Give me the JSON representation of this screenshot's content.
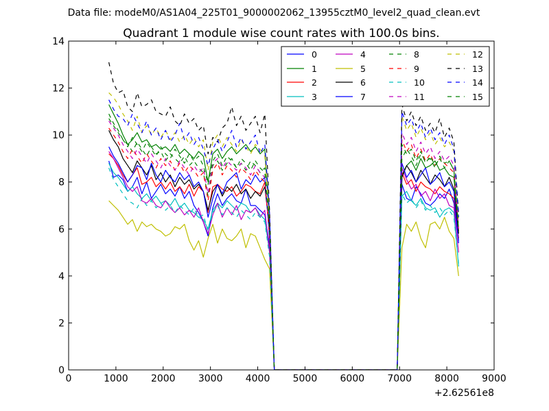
{
  "figure": {
    "suptitle": "Data file: modeM0/AS1A04_225T01_9000002062_13955cztM0_level2_quad_clean.evt"
  },
  "chart_data": {
    "type": "line",
    "title": "Quadrant 1 module wise count rates with 100.0s bins.",
    "xlabel": "",
    "ylabel": "",
    "x_offset_text": "+2.62561e8",
    "xlim": [
      0,
      9000
    ],
    "ylim": [
      0,
      14
    ],
    "xticks": [
      0,
      1000,
      2000,
      3000,
      4000,
      5000,
      6000,
      7000,
      8000,
      9000
    ],
    "yticks": [
      0,
      2,
      4,
      6,
      8,
      10,
      12,
      14
    ],
    "legend_location": "top-right",
    "legend_columns": 4,
    "segments": [
      {
        "x_start": 850,
        "x_end": 4350,
        "step": 100
      },
      {
        "x_start": 6950,
        "x_end": 8250,
        "step": 100
      }
    ],
    "gap_start": 4350,
    "gap_end": 6950,
    "series": [
      {
        "name": "0",
        "color": "#0000ff",
        "dash": "solid",
        "seg1": [
          8.9,
          8.2,
          8.3,
          8.1,
          7.6,
          7.8,
          8.2,
          7.5,
          8.0,
          7.3,
          7.6,
          7.9,
          7.5,
          7.7,
          7.4,
          7.8,
          7.3,
          7.6,
          7.0,
          6.7,
          6.3,
          5.7,
          6.9,
          7.5,
          7.0,
          7.3,
          7.5,
          7.2,
          7.1,
          7.7,
          7.0,
          7.0,
          6.8,
          6.6,
          5.3,
          0.0
        ],
        "seg2": [
          0.0,
          7.9,
          7.3,
          7.2,
          7.8,
          7.5,
          7.1,
          7.0,
          7.2,
          7.5,
          7.3,
          7.7,
          7.1,
          5.5
        ]
      },
      {
        "name": "1",
        "color": "#008000",
        "dash": "solid",
        "seg1": [
          11.3,
          10.9,
          10.5,
          10.0,
          9.6,
          9.8,
          10.1,
          9.7,
          9.8,
          9.5,
          9.6,
          9.4,
          9.5,
          9.3,
          9.6,
          9.2,
          9.4,
          9.2,
          9.0,
          9.3,
          9.1,
          8.0,
          9.2,
          9.4,
          9.0,
          9.3,
          9.5,
          9.2,
          9.4,
          9.6,
          9.3,
          9.5,
          9.2,
          9.4,
          6.2,
          0.0
        ],
        "seg2": [
          0.0,
          8.3,
          8.7,
          8.9,
          8.5,
          9.0,
          8.6,
          8.7,
          8.9,
          8.5,
          8.6,
          8.3,
          8.2,
          5.9
        ]
      },
      {
        "name": "2",
        "color": "#ff0000",
        "dash": "solid",
        "seg1": [
          9.2,
          9.0,
          8.7,
          8.3,
          8.0,
          8.3,
          8.6,
          7.9,
          8.0,
          8.2,
          7.8,
          8.0,
          7.7,
          8.0,
          7.6,
          7.8,
          7.5,
          7.9,
          7.4,
          7.8,
          7.6,
          6.7,
          7.8,
          7.9,
          7.7,
          7.6,
          7.8,
          7.4,
          7.6,
          7.9,
          7.8,
          7.6,
          7.5,
          8.0,
          5.8,
          0.0
        ],
        "seg2": [
          0.0,
          8.4,
          7.9,
          8.1,
          7.6,
          8.0,
          7.8,
          7.7,
          7.5,
          7.8,
          7.6,
          7.5,
          7.3,
          5.6
        ]
      },
      {
        "name": "3",
        "color": "#00bfbf",
        "dash": "solid",
        "seg1": [
          8.8,
          8.4,
          8.2,
          7.9,
          7.6,
          7.8,
          7.5,
          7.3,
          7.5,
          7.2,
          7.4,
          7.1,
          7.2,
          7.0,
          7.3,
          6.9,
          7.1,
          6.8,
          6.7,
          6.5,
          6.4,
          6.0,
          6.8,
          7.1,
          6.9,
          7.2,
          7.0,
          6.8,
          7.1,
          7.0,
          6.7,
          6.9,
          6.6,
          6.4,
          5.0,
          0.0
        ],
        "seg2": [
          0.0,
          7.4,
          7.6,
          7.2,
          7.0,
          7.3,
          6.9,
          6.8,
          6.9,
          6.5,
          6.8,
          6.9,
          6.7,
          4.4
        ]
      },
      {
        "name": "4",
        "color": "#bf00bf",
        "dash": "solid",
        "seg1": [
          9.3,
          9.0,
          8.6,
          8.2,
          7.8,
          7.6,
          7.8,
          7.2,
          7.1,
          7.3,
          7.0,
          6.9,
          7.2,
          6.9,
          6.7,
          6.9,
          6.6,
          6.8,
          6.5,
          6.9,
          6.3,
          5.8,
          6.6,
          7.1,
          6.5,
          6.9,
          6.6,
          7.0,
          6.4,
          6.8,
          6.7,
          6.9,
          6.5,
          6.8,
          5.0,
          0.0
        ],
        "seg2": [
          0.0,
          8.6,
          8.1,
          7.7,
          7.9,
          7.4,
          7.6,
          7.2,
          7.7,
          7.3,
          7.5,
          7.0,
          6.9,
          5.0
        ]
      },
      {
        "name": "5",
        "color": "#bfbf00",
        "dash": "solid",
        "seg1": [
          7.2,
          7.0,
          6.8,
          6.5,
          6.2,
          6.4,
          5.9,
          6.3,
          6.1,
          6.2,
          6.0,
          5.9,
          5.7,
          5.8,
          6.1,
          6.0,
          6.2,
          5.5,
          5.1,
          5.5,
          4.8,
          5.6,
          6.2,
          5.4,
          6.0,
          5.6,
          5.5,
          5.7,
          6.0,
          5.2,
          5.8,
          5.7,
          5.2,
          4.7,
          4.3,
          0.0
        ],
        "seg2": [
          0.0,
          5.2,
          6.2,
          5.9,
          6.3,
          5.6,
          5.2,
          6.2,
          6.3,
          6.0,
          6.5,
          5.9,
          5.6,
          4.0
        ]
      },
      {
        "name": "6",
        "color": "#000000",
        "dash": "solid",
        "seg1": [
          10.2,
          9.8,
          9.5,
          9.0,
          8.7,
          8.4,
          8.9,
          8.6,
          8.3,
          8.7,
          8.1,
          8.4,
          8.0,
          8.3,
          7.8,
          8.2,
          7.9,
          8.1,
          7.7,
          7.9,
          7.6,
          6.8,
          7.6,
          7.9,
          7.4,
          7.8,
          7.6,
          7.9,
          7.5,
          7.7,
          7.3,
          7.6,
          7.4,
          7.8,
          6.0,
          0.0
        ],
        "seg2": [
          0.0,
          8.2,
          8.7,
          8.4,
          8.0,
          8.5,
          8.2,
          7.9,
          8.3,
          8.1,
          7.8,
          8.2,
          7.7,
          5.8
        ]
      },
      {
        "name": "7",
        "color": "#0000ff",
        "dash": "solid",
        "seg1": [
          9.5,
          9.1,
          8.8,
          8.4,
          8.0,
          8.3,
          8.7,
          8.6,
          8.1,
          8.8,
          8.3,
          8.0,
          8.5,
          8.2,
          8.0,
          8.4,
          8.1,
          8.3,
          7.8,
          8.0,
          7.6,
          6.5,
          7.3,
          7.9,
          7.5,
          8.0,
          8.2,
          8.4,
          7.7,
          8.1,
          7.9,
          8.3,
          8.0,
          8.2,
          5.6,
          0.0
        ],
        "seg2": [
          0.0,
          8.8,
          8.2,
          8.5,
          8.0,
          8.3,
          8.6,
          7.9,
          8.1,
          8.4,
          7.8,
          8.0,
          7.6,
          5.4
        ]
      },
      {
        "name": "8",
        "color": "#008000",
        "dash": "dashed",
        "seg1": [
          10.9,
          10.5,
          10.2,
          9.8,
          9.6,
          9.3,
          9.7,
          9.4,
          9.1,
          9.5,
          9.2,
          9.3,
          8.9,
          9.2,
          9.0,
          8.8,
          9.1,
          8.7,
          8.9,
          8.6,
          8.4,
          7.4,
          8.7,
          8.9,
          8.5,
          8.8,
          9.0,
          8.6,
          8.8,
          8.5,
          8.9,
          8.7,
          8.4,
          8.6,
          5.9,
          0.0
        ],
        "seg2": [
          0.0,
          9.0,
          9.4,
          9.1,
          8.7,
          9.2,
          8.9,
          9.0,
          8.6,
          9.1,
          8.8,
          8.9,
          8.5,
          6.1
        ]
      },
      {
        "name": "9",
        "color": "#ff0000",
        "dash": "dashed",
        "seg1": [
          10.3,
          10.0,
          9.7,
          9.3,
          9.0,
          9.4,
          9.1,
          8.8,
          9.2,
          8.9,
          8.6,
          9.0,
          8.7,
          8.9,
          8.5,
          8.8,
          8.4,
          8.7,
          8.5,
          8.2,
          8.4,
          7.2,
          8.5,
          8.8,
          8.3,
          8.7,
          8.5,
          8.2,
          8.6,
          8.4,
          8.1,
          8.5,
          8.2,
          8.0,
          5.7,
          0.0
        ],
        "seg2": [
          0.0,
          9.8,
          9.3,
          9.6,
          9.0,
          9.4,
          8.9,
          9.2,
          8.7,
          9.0,
          8.8,
          8.6,
          8.4,
          5.9
        ]
      },
      {
        "name": "10",
        "color": "#00bfbf",
        "dash": "dashed",
        "seg1": [
          8.6,
          8.1,
          7.8,
          7.5,
          7.2,
          7.1,
          6.9,
          7.3,
          7.0,
          7.2,
          6.9,
          7.1,
          6.8,
          7.0,
          6.7,
          7.0,
          6.8,
          6.6,
          6.9,
          6.5,
          6.6,
          5.9,
          6.7,
          7.0,
          6.6,
          6.9,
          6.7,
          6.5,
          6.8,
          6.6,
          6.4,
          6.7,
          6.5,
          6.3,
          4.8,
          0.0
        ],
        "seg2": [
          0.0,
          7.5,
          7.1,
          7.3,
          6.9,
          7.2,
          6.8,
          7.0,
          6.7,
          6.9,
          6.6,
          6.8,
          6.5,
          4.5
        ]
      },
      {
        "name": "11",
        "color": "#bf00bf",
        "dash": "dashed",
        "seg1": [
          10.6,
          10.3,
          10.0,
          9.6,
          9.3,
          9.0,
          9.4,
          9.1,
          8.8,
          9.2,
          8.9,
          8.6,
          9.0,
          8.7,
          8.5,
          8.9,
          8.6,
          8.3,
          8.7,
          8.4,
          8.6,
          7.5,
          8.8,
          9.0,
          8.6,
          8.9,
          8.7,
          8.5,
          8.8,
          8.6,
          8.3,
          8.7,
          8.4,
          8.2,
          5.8,
          0.0
        ],
        "seg2": [
          0.0,
          10.1,
          9.6,
          9.9,
          9.3,
          9.7,
          9.2,
          9.5,
          9.0,
          9.3,
          8.9,
          9.1,
          8.7,
          6.0
        ]
      },
      {
        "name": "12",
        "color": "#bfbf00",
        "dash": "dashed",
        "seg1": [
          11.8,
          11.6,
          11.3,
          10.9,
          10.6,
          10.2,
          10.8,
          10.1,
          10.4,
          10.0,
          10.3,
          9.9,
          10.2,
          9.8,
          10.1,
          9.7,
          10.0,
          9.6,
          9.9,
          9.5,
          9.8,
          8.5,
          9.7,
          10.0,
          9.5,
          9.9,
          9.6,
          9.3,
          9.8,
          9.5,
          9.2,
          9.6,
          9.4,
          9.1,
          6.5,
          0.0
        ],
        "seg2": [
          0.0,
          10.8,
          10.2,
          10.5,
          9.9,
          10.3,
          9.8,
          10.1,
          9.6,
          9.9,
          9.5,
          9.7,
          9.3,
          6.4
        ]
      },
      {
        "name": "13",
        "color": "#000000",
        "dash": "dashed",
        "seg1": [
          13.1,
          12.2,
          11.8,
          11.9,
          11.2,
          11.0,
          11.8,
          11.2,
          11.3,
          11.5,
          11.0,
          10.9,
          10.8,
          11.2,
          10.6,
          10.4,
          10.9,
          10.5,
          10.7,
          10.2,
          10.4,
          9.2,
          9.9,
          9.7,
          10.3,
          10.5,
          11.2,
          10.4,
          10.8,
          10.2,
          10.5,
          10.8,
          10.1,
          10.9,
          6.8,
          0.0
        ],
        "seg2": [
          0.0,
          11.3,
          10.6,
          11.0,
          10.4,
          10.8,
          10.2,
          10.5,
          10.1,
          10.7,
          9.9,
          10.3,
          9.7,
          6.6
        ]
      },
      {
        "name": "14",
        "color": "#0000ff",
        "dash": "dashed",
        "seg1": [
          11.5,
          11.1,
          10.8,
          10.7,
          10.4,
          10.9,
          10.5,
          10.1,
          10.6,
          10.0,
          10.3,
          9.8,
          10.2,
          9.7,
          10.0,
          10.5,
          9.8,
          10.1,
          9.6,
          9.9,
          9.4,
          8.7,
          9.4,
          9.8,
          9.3,
          9.7,
          10.2,
          9.5,
          9.9,
          9.4,
          9.7,
          10.0,
          9.2,
          9.6,
          6.7,
          0.0
        ],
        "seg2": [
          0.0,
          11.0,
          10.4,
          10.7,
          10.1,
          10.5,
          9.9,
          10.3,
          9.8,
          10.1,
          9.6,
          10.0,
          9.4,
          6.5
        ]
      },
      {
        "name": "15",
        "color": "#008000",
        "dash": "dashed",
        "seg1": [
          10.7,
          10.4,
          10.1,
          9.8,
          9.5,
          9.9,
          9.6,
          9.3,
          9.7,
          9.4,
          9.1,
          9.5,
          9.2,
          9.0,
          9.4,
          9.1,
          8.8,
          9.2,
          8.9,
          9.1,
          8.7,
          7.9,
          8.9,
          9.2,
          8.7,
          9.1,
          8.9,
          8.6,
          9.0,
          8.8,
          8.5,
          8.9,
          8.6,
          8.4,
          6.0,
          0.0
        ],
        "seg2": [
          0.0,
          9.6,
          9.2,
          9.4,
          8.9,
          9.3,
          8.8,
          9.1,
          8.7,
          9.0,
          8.6,
          8.9,
          8.5,
          6.0
        ]
      }
    ]
  }
}
